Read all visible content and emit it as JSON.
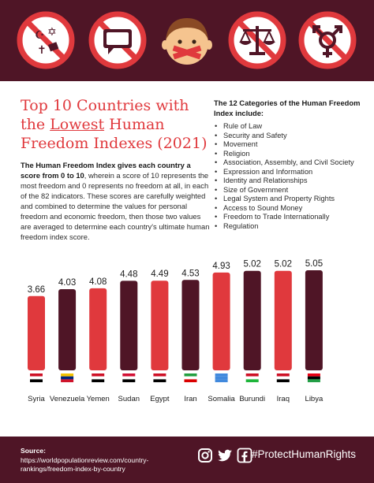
{
  "banner": {
    "icons": [
      "religion-prohibited-icon",
      "speech-prohibited-icon",
      "gagged-person-icon",
      "justice-prohibited-icon",
      "gender-prohibited-icon"
    ]
  },
  "title": {
    "line1": "Top 10 Countries with",
    "the_word": "the ",
    "underlined": "Lowest",
    "line2_rest": " Human",
    "line3": "Freedom Indexes (2021)"
  },
  "intro": {
    "bold": "The Human Freedom Index gives each country a score from 0 to 10",
    "text": ", wherein a score of 10 represents the most freedom and 0 represents no freedom at all, in each of the 82 indicators. These scores are carefully weighted and combined to determine the values for personal freedom and economic freedom, then those two values are averaged to determine each country's ultimate human freedom index score."
  },
  "categories": {
    "heading": "The 12 Categories of the Human Freedom Index include:",
    "items": [
      "Rule of Law",
      "Security and Safety",
      "Movement",
      "Religion",
      "Association, Assembly, and Civil Society",
      "Expression and Information",
      "Identity and Relationships",
      "Size of Government",
      "Legal System and Property Rights",
      "Access to Sound Money",
      "Freedom to Trade Internationally",
      "Regulation"
    ]
  },
  "chart_data": {
    "type": "bar",
    "title": "Top 10 Countries with the Lowest Human Freedom Indexes (2021)",
    "categories": [
      "Syria",
      "Venezuela",
      "Yemen",
      "Sudan",
      "Egypt",
      "Iran",
      "Somalia",
      "Burundi",
      "Iraq",
      "Libya"
    ],
    "values": [
      3.66,
      4.03,
      4.08,
      4.48,
      4.49,
      4.53,
      4.93,
      5.02,
      5.02,
      5.05
    ],
    "value_labels": [
      "3.66",
      "4.03",
      "4.08",
      "4.48",
      "4.49",
      "4.53",
      "4.93",
      "5.02",
      "5.02",
      "5.05"
    ],
    "bar_colors": [
      "#e0393d",
      "#4f1526",
      "#e0393d",
      "#4f1526",
      "#e0393d",
      "#4f1526",
      "#e0393d",
      "#4f1526",
      "#e0393d",
      "#4f1526"
    ],
    "ylim": [
      0,
      5.05
    ],
    "grid": false,
    "legend": "none"
  },
  "footer": {
    "source_label": "Source:",
    "source_text": " https://worldpopulationreview.com/country-rankings/freedom-index-by-country",
    "social_icons": [
      "instagram-icon",
      "twitter-icon",
      "facebook-icon"
    ],
    "hashtag": "#ProtectHumanRights"
  },
  "colors": {
    "maroon": "#4f1526",
    "red": "#e0393d"
  }
}
